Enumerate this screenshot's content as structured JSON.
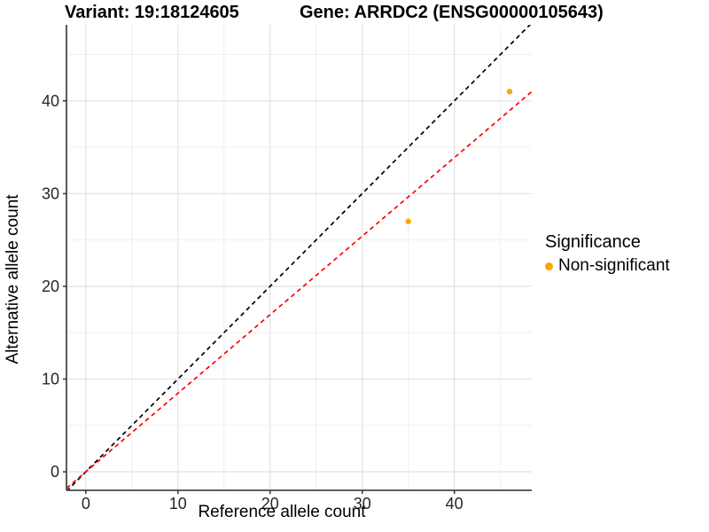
{
  "header": {
    "variant_title": "Variant: 19:18124605",
    "gene_title": "Gene: ARRDC2 (ENSG00000105643)"
  },
  "chart_data": {
    "type": "scatter",
    "xlabel": "Reference allele count",
    "ylabel": "Alternative allele count",
    "xlim": [
      -2.1,
      48.4
    ],
    "ylim": [
      -2.0,
      48.2
    ],
    "xticks": [
      0,
      10,
      20,
      30,
      40
    ],
    "yticks": [
      0,
      10,
      20,
      30,
      40
    ],
    "minor_grid_step": 5,
    "grid": "major+minor on white background",
    "points": [
      {
        "x": 35,
        "y": 27,
        "significance": "Non-significant"
      },
      {
        "x": 46,
        "y": 41,
        "significance": "Non-significant"
      }
    ],
    "point_color": "#FFA500",
    "lines": [
      {
        "name": "identity-line",
        "slope": 1,
        "intercept": 0,
        "color": "#000000",
        "style": "dashed"
      },
      {
        "name": "fit-line",
        "slope": 0.847,
        "intercept": 0,
        "color": "#FF0000",
        "style": "dashed"
      }
    ],
    "legend_position": "right"
  },
  "legend": {
    "title": "Significance",
    "items": [
      {
        "label": "Non-significant",
        "color": "#FFA500"
      }
    ]
  },
  "style_colors": {
    "major_grid": "#E4E4E4",
    "minor_grid": "#EFEFEF",
    "axis_line": "#4a4a4a",
    "tick_mark": "#333333",
    "tick_label": "#262626"
  }
}
